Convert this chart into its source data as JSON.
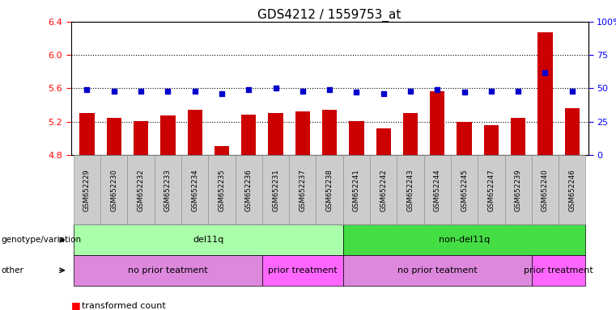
{
  "title": "GDS4212 / 1559753_at",
  "samples": [
    "GSM652229",
    "GSM652230",
    "GSM652232",
    "GSM652233",
    "GSM652234",
    "GSM652235",
    "GSM652236",
    "GSM652231",
    "GSM652237",
    "GSM652238",
    "GSM652241",
    "GSM652242",
    "GSM652243",
    "GSM652244",
    "GSM652245",
    "GSM652247",
    "GSM652239",
    "GSM652240",
    "GSM652246"
  ],
  "red_values": [
    5.3,
    5.25,
    5.21,
    5.27,
    5.34,
    4.91,
    5.28,
    5.3,
    5.32,
    5.34,
    5.21,
    5.12,
    5.3,
    5.57,
    5.2,
    5.16,
    5.25,
    6.27,
    5.36
  ],
  "blue_values_pct": [
    49,
    48,
    48,
    48,
    48,
    46,
    49,
    50,
    48,
    49,
    47,
    46,
    48,
    49,
    47,
    48,
    48,
    62,
    48
  ],
  "ylim_left": [
    4.8,
    6.4
  ],
  "ylim_right": [
    0,
    100
  ],
  "yticks_left": [
    4.8,
    5.2,
    5.6,
    6.0,
    6.4
  ],
  "yticks_right": [
    0,
    25,
    50,
    75,
    100
  ],
  "ytick_labels_right": [
    "0",
    "25",
    "50",
    "75",
    "100%"
  ],
  "bar_color": "#cc0000",
  "dot_color": "#0000cc",
  "genotype_groups": [
    {
      "label": "del11q",
      "start": 0,
      "end": 10,
      "color": "#aaffaa"
    },
    {
      "label": "non-del11q",
      "start": 10,
      "end": 19,
      "color": "#44dd44"
    }
  ],
  "other_groups": [
    {
      "label": "no prior teatment",
      "start": 0,
      "end": 7,
      "color": "#dd88dd"
    },
    {
      "label": "prior treatment",
      "start": 7,
      "end": 10,
      "color": "#ff66ff"
    },
    {
      "label": "no prior teatment",
      "start": 10,
      "end": 17,
      "color": "#dd88dd"
    },
    {
      "label": "prior treatment",
      "start": 17,
      "end": 19,
      "color": "#ff66ff"
    }
  ],
  "row1_label": "genotype/variation",
  "row2_label": "other"
}
